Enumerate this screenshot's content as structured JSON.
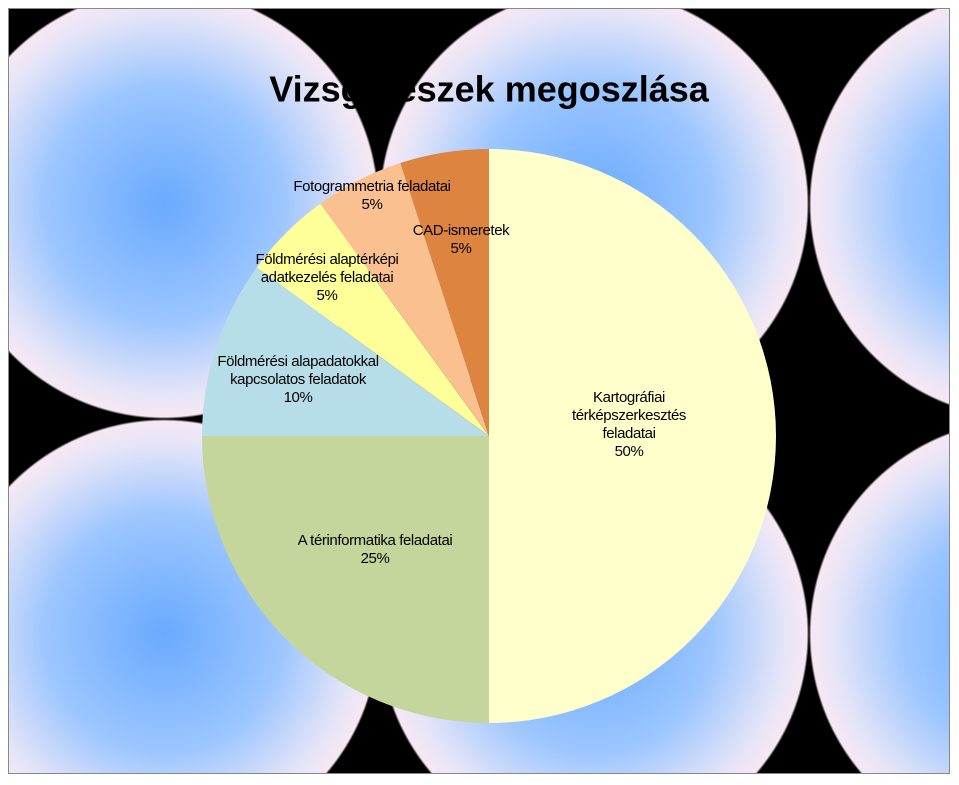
{
  "chart_data": {
    "type": "pie",
    "title": "Vizsgarészek megoszlása",
    "categories": [
      "Kartográfiai térképszerkesztés feladatai",
      "A térinformatika feladatai",
      "Földmérési alapadatokkal kapcsolatos feladatok",
      "Földmérési alaptérképi adatkezelés feladatai",
      "Fotogrammetria feladatai",
      "CAD-ismeretek"
    ],
    "values": [
      50,
      25,
      10,
      5,
      5,
      5
    ],
    "value_labels": [
      "50%",
      "25%",
      "10%",
      "5%",
      "5%",
      "5%"
    ],
    "colors": [
      "#ffffcc",
      "#c4d69b",
      "#b7dde8",
      "#ffff99",
      "#fac08f",
      "#dc8440"
    ]
  }
}
